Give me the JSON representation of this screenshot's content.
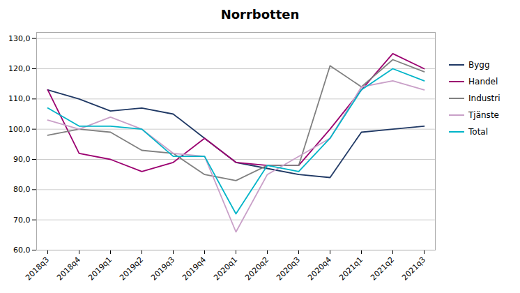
{
  "chart_data": {
    "type": "line",
    "title": "Norrbotten",
    "categories": [
      "2018q3",
      "2018q4",
      "2019q1",
      "2019q2",
      "2019q3",
      "2019q4",
      "2020q1",
      "2020q2",
      "2020q3",
      "2020q4",
      "2021q1",
      "2021q2",
      "2021q3"
    ],
    "series": [
      {
        "name": "Bygg",
        "color": "#1f3864",
        "values": [
          113,
          110,
          106,
          107,
          105,
          97,
          89,
          87,
          85,
          84,
          99,
          100,
          101
        ]
      },
      {
        "name": "Handel",
        "color": "#9b0070",
        "values": [
          113,
          92,
          90,
          86,
          89,
          97,
          89,
          88,
          88,
          100,
          113,
          125,
          120
        ]
      },
      {
        "name": "Industri",
        "color": "#808080",
        "values": [
          98,
          100,
          99,
          93,
          92,
          85,
          83,
          88,
          88,
          121,
          114,
          123,
          119
        ]
      },
      {
        "name": "Tjänste",
        "color": "#c9a0c8",
        "values": [
          103,
          100,
          104,
          100,
          92,
          91,
          66,
          85,
          91,
          97,
          114,
          116,
          113
        ]
      },
      {
        "name": "Total",
        "color": "#00b4c8",
        "values": [
          107,
          101,
          101,
          100,
          91,
          91,
          72,
          88,
          86,
          97,
          113,
          120,
          116
        ]
      }
    ],
    "ylim": [
      60,
      132
    ],
    "yticks": [
      {
        "value": 60,
        "label": "60,0"
      },
      {
        "value": 70,
        "label": "70,0"
      },
      {
        "value": 80,
        "label": "80,0"
      },
      {
        "value": 90,
        "label": "90,0"
      },
      {
        "value": 100,
        "label": "100,0"
      },
      {
        "value": 110,
        "label": "110,0"
      },
      {
        "value": 120,
        "label": "120,0"
      },
      {
        "value": 130,
        "label": "130,0"
      }
    ],
    "grid": true,
    "legend": "right"
  }
}
